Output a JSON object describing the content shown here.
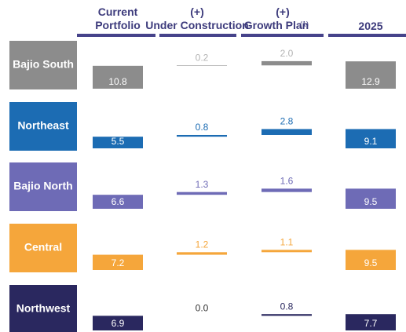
{
  "columns": [
    {
      "text": "Current Portfolio"
    },
    {
      "text": "(+) Under Construction"
    },
    {
      "text": "(+) Growth Plan",
      "note": "(1)"
    },
    {
      "text": "2025"
    }
  ],
  "rows": [
    {
      "label": "Bajio South",
      "color": "#8c8c8c",
      "label_color": "#b3b3b3",
      "values": [
        10.8,
        0.2,
        2.0,
        12.9
      ],
      "value_labels": [
        "10.8",
        "0.2",
        "2.0",
        "12.9"
      ]
    },
    {
      "label": "Northeast",
      "color": "#1c6cb3",
      "label_color": "#1c6cb3",
      "values": [
        5.5,
        0.8,
        2.8,
        9.1
      ],
      "value_labels": [
        "5.5",
        "0.8",
        "2.8",
        "9.1"
      ]
    },
    {
      "label": "Bajio North",
      "color": "#6e6bb6",
      "label_color": "#6e6bb6",
      "values": [
        6.6,
        1.3,
        1.6,
        9.5
      ],
      "value_labels": [
        "6.6",
        "1.3",
        "1.6",
        "9.5"
      ]
    },
    {
      "label": "Central",
      "color": "#f5a63b",
      "label_color": "#f5a63b",
      "values": [
        7.2,
        1.2,
        1.1,
        9.5
      ],
      "value_labels": [
        "7.2",
        "1.2",
        "1.1",
        "9.5"
      ]
    },
    {
      "label": "Northwest",
      "color": "#2a285f",
      "label_color": "#2a285f",
      "values": [
        6.9,
        0.0,
        0.8,
        7.7
      ],
      "value_labels": [
        "6.9",
        "0.0",
        "0.8",
        "7.7"
      ]
    }
  ]
}
